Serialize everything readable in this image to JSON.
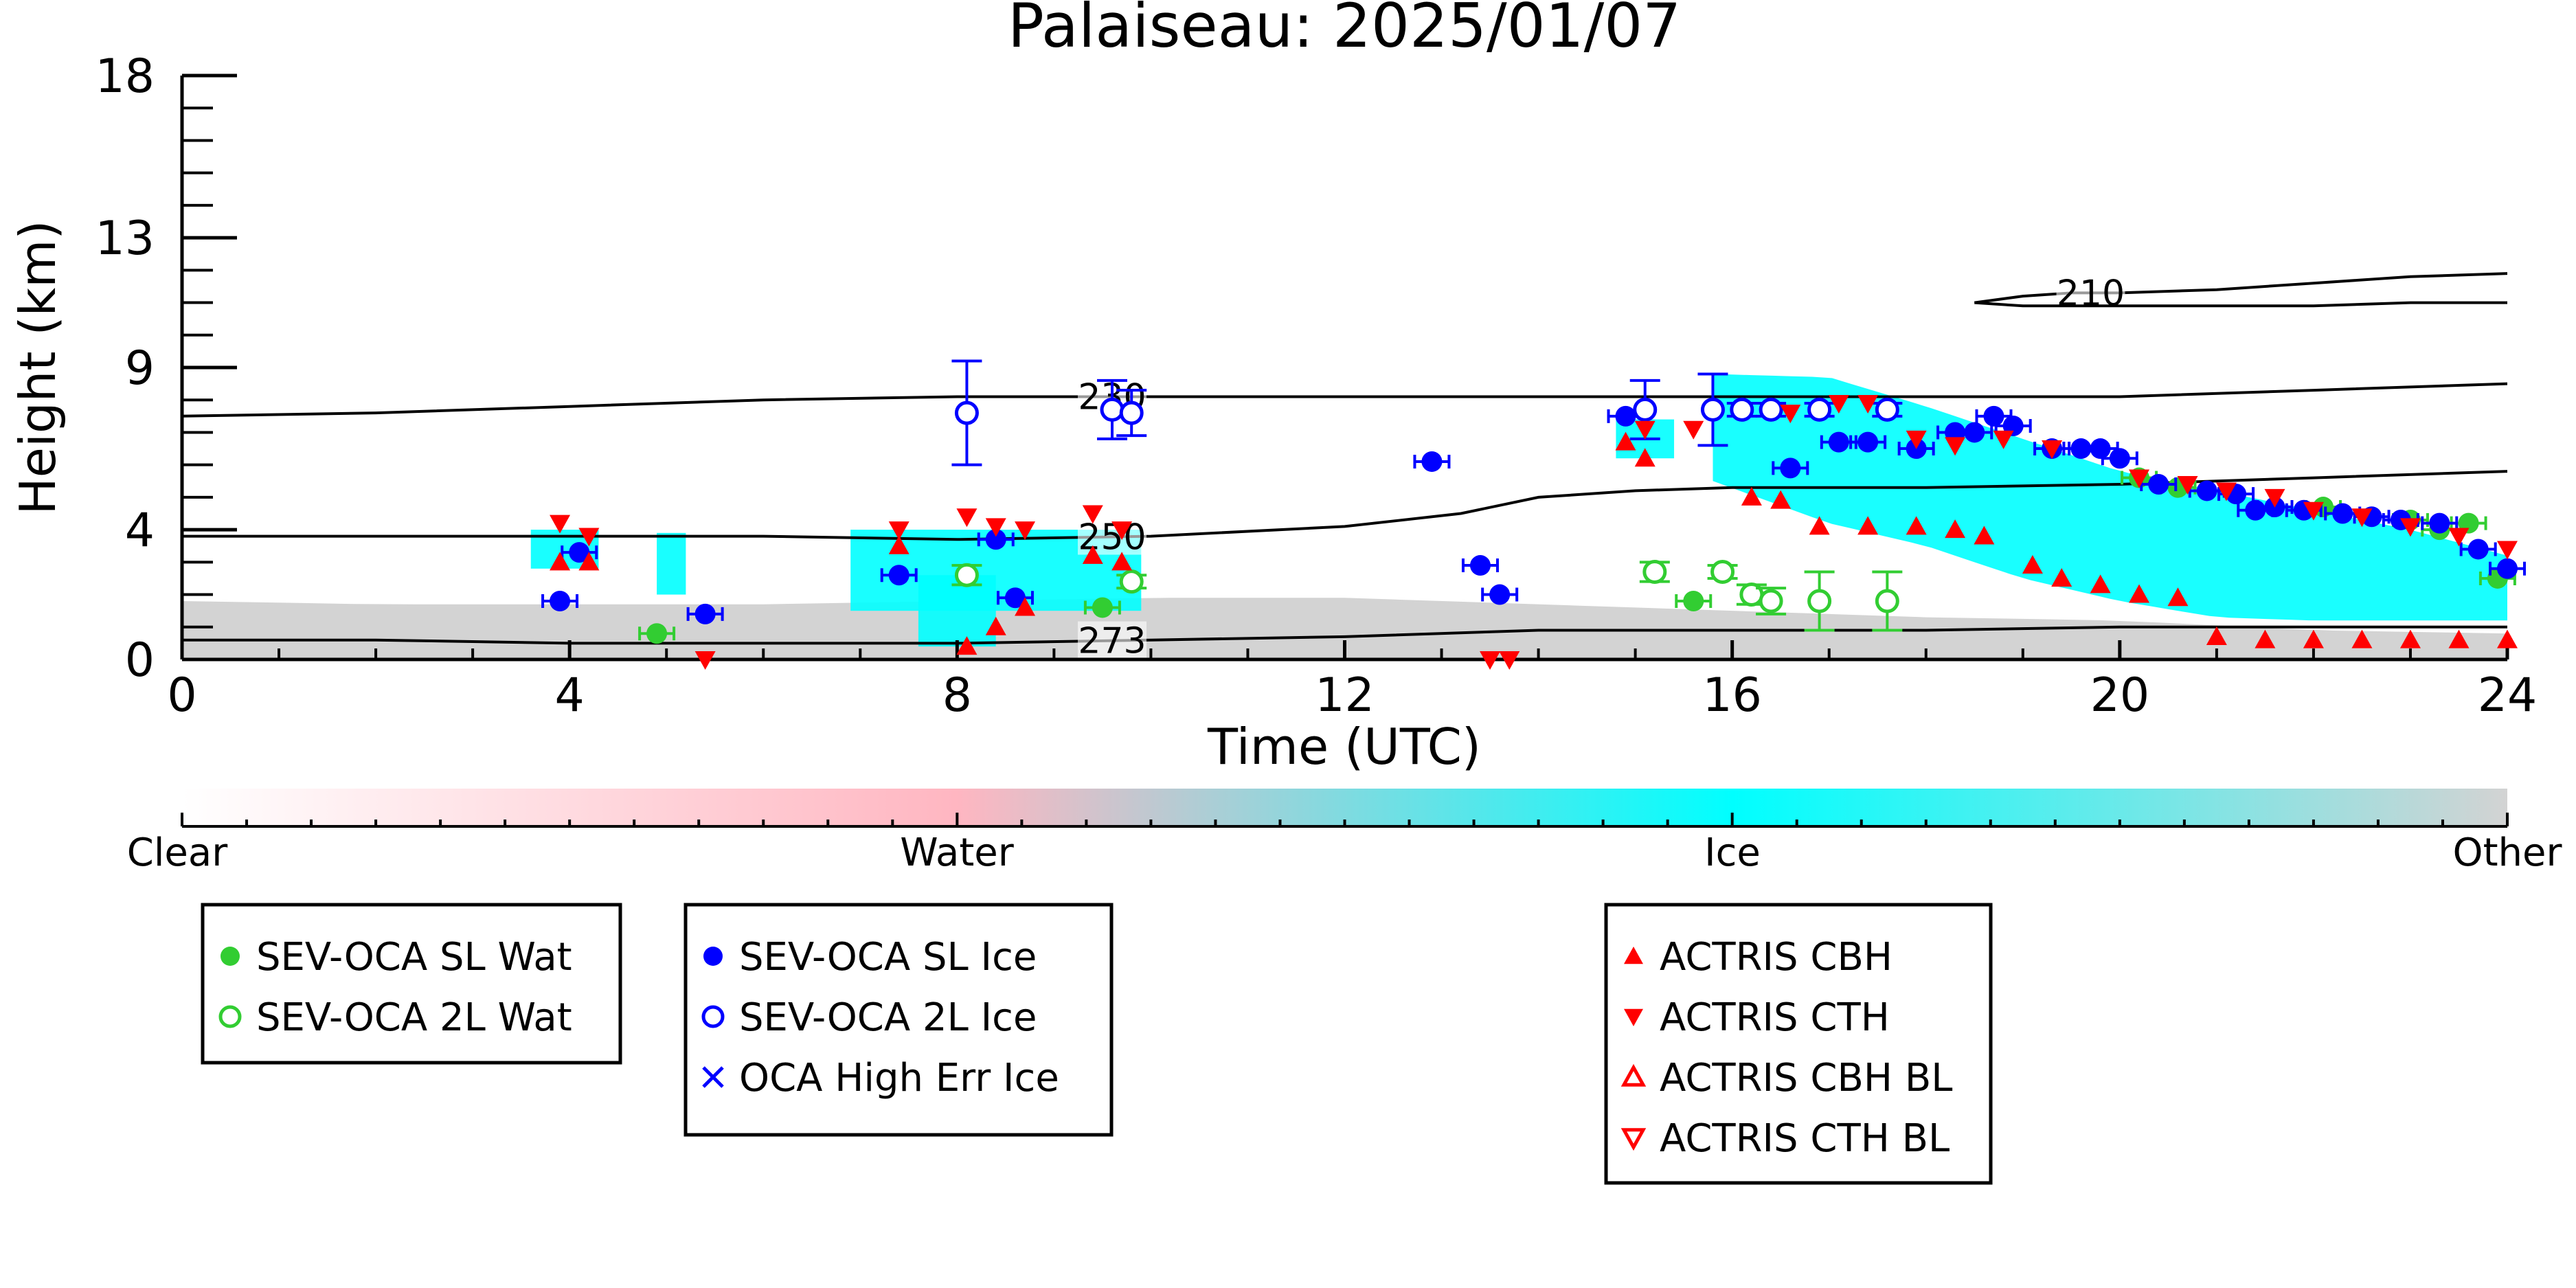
{
  "chart_data": {
    "type": "scatter",
    "title": "Palaiseau: 2025/01/07",
    "xlabel": "Time (UTC)",
    "ylabel": "Height (km)",
    "xlim": [
      0,
      24
    ],
    "ylim": [
      0,
      18
    ],
    "x_ticks": [
      0,
      4,
      8,
      12,
      16,
      20,
      24
    ],
    "y_ticks": [
      0,
      4,
      9,
      13,
      18
    ],
    "colors": {
      "water": "#ffb6c1",
      "ice": "#00ffff",
      "other": "#d3d3d3",
      "sev_wat": "#32cd32",
      "sev_ice": "#0000ff",
      "actris": "#ff0000",
      "contour": "#000000"
    },
    "classification_regions": [
      {
        "class": "other",
        "x0": 0,
        "x1": 24,
        "y0": 0,
        "y1_series": [
          [
            0,
            1.8
          ],
          [
            2,
            1.7
          ],
          [
            4,
            1.7
          ],
          [
            6,
            1.7
          ],
          [
            8,
            1.8
          ],
          [
            10,
            1.9
          ],
          [
            12,
            1.9
          ],
          [
            14,
            1.7
          ],
          [
            16,
            1.5
          ],
          [
            18,
            1.3
          ],
          [
            20,
            1.2
          ],
          [
            22,
            0.9
          ],
          [
            24,
            0.8
          ]
        ]
      },
      {
        "class": "ice",
        "x0": 3.6,
        "x1": 4.3,
        "y0": 2.8,
        "y1": 4.0
      },
      {
        "class": "ice",
        "x0": 4.9,
        "x1": 5.2,
        "y0": 2.0,
        "y1": 3.9
      },
      {
        "class": "ice",
        "x0": 6.9,
        "x1": 9.9,
        "y0": 1.5,
        "y1": 4.0
      },
      {
        "class": "ice",
        "x0": 7.6,
        "x1": 8.4,
        "y0": 0.4,
        "y1": 2.6
      },
      {
        "class": "ice",
        "x0": 14.8,
        "x1": 15.4,
        "y0": 6.2,
        "y1": 7.4
      },
      {
        "class": "ice",
        "x0": 15.8,
        "x1": 24,
        "y0_series": [
          [
            15.8,
            5.5
          ],
          [
            17,
            4.2
          ],
          [
            18,
            3.5
          ],
          [
            19,
            2.5
          ],
          [
            20,
            1.8
          ],
          [
            21,
            1.3
          ],
          [
            22,
            1.2
          ],
          [
            23,
            1.2
          ],
          [
            24,
            1.2
          ]
        ],
        "y1_series": [
          [
            15.8,
            8.8
          ],
          [
            17,
            8.7
          ],
          [
            18,
            7.8
          ],
          [
            19,
            6.8
          ],
          [
            20,
            5.8
          ],
          [
            21,
            5.2
          ],
          [
            22,
            4.6
          ],
          [
            23,
            4.0
          ],
          [
            24,
            3.2
          ]
        ]
      }
    ],
    "contours": [
      {
        "label": "210",
        "label_x": 19.7,
        "points": [
          [
            18.5,
            11.0
          ],
          [
            19,
            11.2
          ],
          [
            19.5,
            11.3
          ],
          [
            20,
            11.3
          ],
          [
            21,
            11.4
          ],
          [
            22,
            11.6
          ],
          [
            23,
            11.8
          ],
          [
            24,
            11.9
          ]
        ]
      },
      {
        "label": "210",
        "label_x": null,
        "points": [
          [
            18.5,
            11.0
          ],
          [
            19,
            10.9
          ],
          [
            20,
            10.9
          ],
          [
            21,
            10.9
          ],
          [
            22,
            10.9
          ],
          [
            23,
            11.0
          ],
          [
            24,
            11.0
          ]
        ]
      },
      {
        "label": "230",
        "label_x": 9.6,
        "points": [
          [
            0,
            7.5
          ],
          [
            2,
            7.6
          ],
          [
            4,
            7.8
          ],
          [
            6,
            8.0
          ],
          [
            8,
            8.1
          ],
          [
            10,
            8.1
          ],
          [
            12,
            8.1
          ],
          [
            14,
            8.1
          ],
          [
            16,
            8.1
          ],
          [
            18,
            8.1
          ],
          [
            20,
            8.1
          ],
          [
            22,
            8.3
          ],
          [
            24,
            8.5
          ]
        ]
      },
      {
        "label": "250",
        "label_x": 9.6,
        "points": [
          [
            0,
            3.8
          ],
          [
            2,
            3.8
          ],
          [
            4,
            3.8
          ],
          [
            6,
            3.8
          ],
          [
            8,
            3.7
          ],
          [
            10,
            3.8
          ],
          [
            12,
            4.1
          ],
          [
            13.2,
            4.5
          ],
          [
            14,
            5.0
          ],
          [
            15,
            5.2
          ],
          [
            16,
            5.3
          ],
          [
            18,
            5.3
          ],
          [
            20,
            5.4
          ],
          [
            22,
            5.6
          ],
          [
            24,
            5.8
          ]
        ]
      },
      {
        "label": "273",
        "label_x": 9.6,
        "points": [
          [
            0,
            0.6
          ],
          [
            2,
            0.6
          ],
          [
            4,
            0.5
          ],
          [
            6,
            0.5
          ],
          [
            8,
            0.5
          ],
          [
            10,
            0.6
          ],
          [
            12,
            0.7
          ],
          [
            14,
            0.9
          ],
          [
            16,
            0.9
          ],
          [
            18,
            0.9
          ],
          [
            20,
            1.0
          ],
          [
            22,
            1.0
          ],
          [
            24,
            1.0
          ]
        ]
      }
    ],
    "series": [
      {
        "name": "SEV-OCA SL Wat",
        "marker": "circle-filled",
        "color": "#32cd32",
        "points": [
          [
            4.9,
            0.8
          ],
          [
            9.5,
            1.6
          ],
          [
            15.6,
            1.8
          ],
          [
            20.2,
            5.6
          ],
          [
            20.6,
            5.3
          ],
          [
            22.1,
            4.7
          ],
          [
            23.0,
            4.3
          ],
          [
            23.3,
            4.0
          ],
          [
            23.6,
            4.2
          ],
          [
            23.9,
            2.5
          ]
        ]
      },
      {
        "name": "SEV-OCA 2L Wat",
        "marker": "circle-open",
        "color": "#32cd32",
        "points": [
          [
            8.1,
            2.6,
            0.3
          ],
          [
            9.8,
            2.4,
            0.2
          ],
          [
            15.2,
            2.7,
            0.3
          ],
          [
            15.9,
            2.7,
            0.2
          ],
          [
            16.2,
            2.0,
            0.3
          ],
          [
            16.4,
            1.8,
            0.4
          ],
          [
            16.9,
            1.8,
            0.9
          ],
          [
            17.6,
            1.8,
            0.9
          ]
        ]
      },
      {
        "name": "SEV-OCA SL Ice",
        "marker": "circle-filled",
        "color": "#0000ff",
        "points": [
          [
            3.9,
            1.8
          ],
          [
            4.1,
            3.3
          ],
          [
            5.4,
            1.4
          ],
          [
            7.4,
            2.6
          ],
          [
            8.4,
            3.7
          ],
          [
            8.6,
            1.9
          ],
          [
            12.9,
            6.1
          ],
          [
            13.4,
            2.9
          ],
          [
            13.6,
            2.0
          ],
          [
            14.9,
            7.5
          ],
          [
            16.6,
            5.9
          ],
          [
            17.1,
            6.7
          ],
          [
            17.4,
            6.7
          ],
          [
            17.9,
            6.5
          ],
          [
            18.3,
            7.0
          ],
          [
            18.5,
            7.0
          ],
          [
            18.7,
            7.5
          ],
          [
            18.9,
            7.2
          ],
          [
            19.3,
            6.5
          ],
          [
            19.6,
            6.5
          ],
          [
            19.8,
            6.5
          ],
          [
            20.0,
            6.2
          ],
          [
            20.4,
            5.4
          ],
          [
            20.9,
            5.2
          ],
          [
            21.2,
            5.1
          ],
          [
            21.4,
            4.6
          ],
          [
            21.6,
            4.7
          ],
          [
            21.9,
            4.6
          ],
          [
            22.3,
            4.5
          ],
          [
            22.6,
            4.4
          ],
          [
            22.9,
            4.3
          ],
          [
            23.3,
            4.2
          ],
          [
            23.7,
            3.4
          ],
          [
            24.0,
            2.8
          ]
        ]
      },
      {
        "name": "SEV-OCA 2L Ice",
        "marker": "circle-open",
        "color": "#0000ff",
        "points": [
          [
            8.1,
            7.6,
            1.6
          ],
          [
            9.6,
            7.7,
            0.9
          ],
          [
            9.8,
            7.6,
            0.7
          ],
          [
            15.1,
            7.7,
            0.9
          ],
          [
            15.8,
            7.7,
            1.1
          ],
          [
            16.1,
            7.7,
            0.2
          ],
          [
            16.4,
            7.7,
            0.2
          ],
          [
            16.9,
            7.7,
            0.2
          ],
          [
            17.6,
            7.7,
            0.2
          ]
        ]
      },
      {
        "name": "OCA High Err Ice",
        "marker": "x",
        "color": "#0000ff",
        "points": []
      },
      {
        "name": "ACTRIS CBH",
        "marker": "triangle-up",
        "color": "#ff0000",
        "points": [
          [
            3.9,
            3.0
          ],
          [
            4.2,
            3.0
          ],
          [
            7.4,
            3.5
          ],
          [
            8.1,
            0.4
          ],
          [
            8.4,
            1.0
          ],
          [
            8.7,
            1.6
          ],
          [
            9.4,
            3.2
          ],
          [
            9.7,
            3.0
          ],
          [
            14.9,
            6.7
          ],
          [
            15.1,
            6.2
          ],
          [
            16.2,
            5.0
          ],
          [
            16.5,
            4.9
          ],
          [
            16.9,
            4.1
          ],
          [
            17.4,
            4.1
          ],
          [
            17.9,
            4.1
          ],
          [
            18.3,
            4.0
          ],
          [
            18.6,
            3.8
          ],
          [
            19.1,
            2.9
          ],
          [
            19.4,
            2.5
          ],
          [
            19.8,
            2.3
          ],
          [
            20.2,
            2.0
          ],
          [
            20.6,
            1.9
          ],
          [
            21.0,
            0.7
          ],
          [
            21.5,
            0.6
          ],
          [
            22.0,
            0.6
          ],
          [
            22.5,
            0.6
          ],
          [
            23.0,
            0.6
          ],
          [
            23.5,
            0.6
          ],
          [
            24.0,
            0.6
          ]
        ]
      },
      {
        "name": "ACTRIS CTH",
        "marker": "triangle-down",
        "color": "#ff0000",
        "points": [
          [
            3.9,
            4.2
          ],
          [
            4.2,
            3.8
          ],
          [
            5.4,
            0.0
          ],
          [
            7.4,
            4.0
          ],
          [
            8.1,
            4.4
          ],
          [
            8.4,
            4.1
          ],
          [
            8.7,
            4.0
          ],
          [
            9.4,
            4.5
          ],
          [
            9.7,
            4.0
          ],
          [
            13.5,
            0.0
          ],
          [
            13.7,
            0.0
          ],
          [
            15.1,
            7.1
          ],
          [
            15.6,
            7.1
          ],
          [
            16.6,
            7.6
          ],
          [
            17.1,
            7.9
          ],
          [
            17.4,
            7.9
          ],
          [
            17.9,
            6.8
          ],
          [
            18.3,
            6.6
          ],
          [
            18.8,
            6.8
          ],
          [
            19.3,
            6.5
          ],
          [
            20.2,
            5.6
          ],
          [
            20.7,
            5.4
          ],
          [
            21.1,
            5.2
          ],
          [
            21.6,
            5.0
          ],
          [
            22.0,
            4.6
          ],
          [
            22.5,
            4.4
          ],
          [
            23.0,
            4.1
          ],
          [
            23.5,
            3.8
          ],
          [
            24.0,
            3.4
          ]
        ]
      },
      {
        "name": "ACTRIS CBH BL",
        "marker": "triangle-up-open",
        "color": "#ff0000",
        "points": []
      },
      {
        "name": "ACTRIS CTH BL",
        "marker": "triangle-down-open",
        "color": "#ff0000",
        "points": []
      }
    ],
    "colorbar": {
      "labels": [
        "Clear",
        "Water",
        "Ice",
        "Other"
      ],
      "stops": [
        "#ffffff",
        "#ffb6c1",
        "#00ffff",
        "#d3d3d3"
      ]
    },
    "legends": [
      {
        "entries": [
          0,
          1
        ]
      },
      {
        "entries": [
          2,
          3,
          4
        ]
      },
      {
        "entries": [
          5,
          6,
          7,
          8
        ]
      }
    ]
  }
}
